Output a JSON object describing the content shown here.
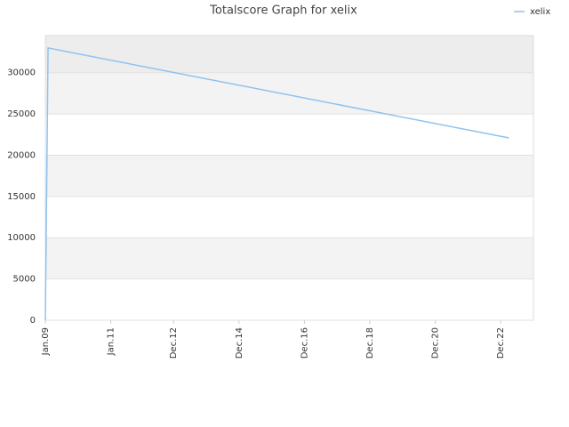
{
  "chart_data": {
    "type": "line",
    "title": "Totalscore Graph for xelix",
    "x": [
      "2009-01",
      "2009-02",
      "2023-03"
    ],
    "series": [
      {
        "name": "xelix",
        "color": "#8fc2ee",
        "values": [
          0,
          33000,
          22100
        ]
      }
    ],
    "xlim": [
      "2009-01",
      "2023-12"
    ],
    "xticks": [
      {
        "value": "2009-01",
        "label": "Jan.09"
      },
      {
        "value": "2011-01",
        "label": "Jan.11"
      },
      {
        "value": "2012-12",
        "label": "Dec.12"
      },
      {
        "value": "2014-12",
        "label": "Dec.14"
      },
      {
        "value": "2016-12",
        "label": "Dec.16"
      },
      {
        "value": "2018-12",
        "label": "Dec.18"
      },
      {
        "value": "2020-12",
        "label": "Dec.20"
      },
      {
        "value": "2022-12",
        "label": "Dec.22"
      }
    ],
    "ylim": [
      0,
      34500
    ],
    "yticks": [
      0,
      5000,
      10000,
      15000,
      20000,
      25000,
      30000
    ],
    "grid": true,
    "legend": "top-right"
  }
}
